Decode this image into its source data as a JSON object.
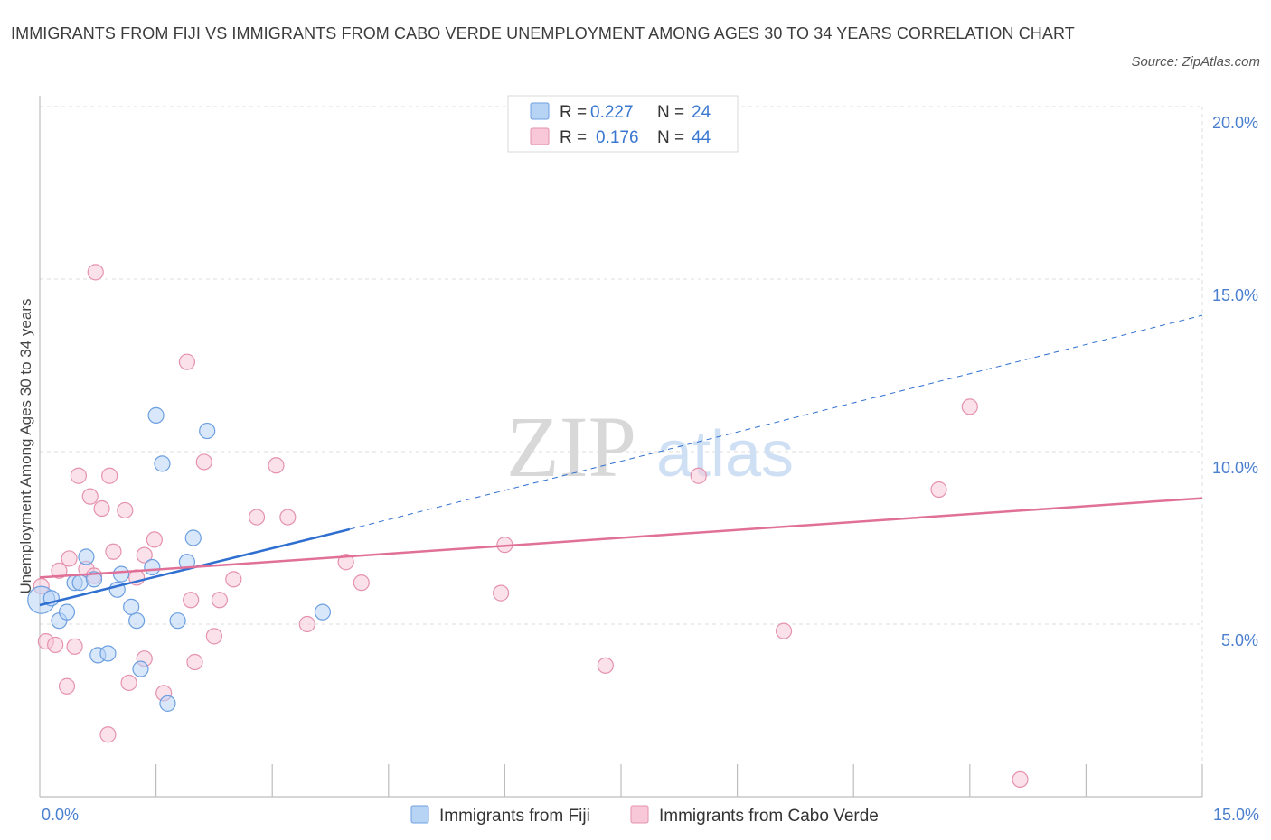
{
  "title": "IMMIGRANTS FROM FIJI VS IMMIGRANTS FROM CABO VERDE UNEMPLOYMENT AMONG AGES 30 TO 34 YEARS CORRELATION CHART",
  "source": "Source: ZipAtlas.com",
  "watermark": {
    "zip": "ZIP",
    "atlas": "atlas"
  },
  "colors": {
    "fiji_fill": "#b8d4f5",
    "fiji_stroke": "#6c9fe0",
    "fiji_line": "#2f6fd0",
    "cabo_fill": "#f8c8d8",
    "cabo_stroke": "#e592ae",
    "cabo_line": "#e07098",
    "tick": "#4a7fcf",
    "grid": "#dcdcdc"
  },
  "legend": {
    "r_label": "R =",
    "n_label": "N =",
    "rows": [
      {
        "series": "fiji",
        "r": "0.227",
        "n": "24"
      },
      {
        "series": "cabo",
        "r": "0.176",
        "n": "44"
      }
    ]
  },
  "chart_data": {
    "type": "scatter",
    "title": "IMMIGRANTS FROM FIJI VS IMMIGRANTS FROM CABO VERDE UNEMPLOYMENT AMONG AGES 30 TO 34 YEARS CORRELATION CHART",
    "xlabel": "",
    "ylabel": "Unemployment Among Ages 30 to 34 years",
    "xlim": [
      0,
      15
    ],
    "ylim": [
      0,
      20
    ],
    "x_tick_labels": [
      {
        "value": 0,
        "label": "0.0%"
      },
      {
        "value": 15,
        "label": "15.0%"
      }
    ],
    "x_minor_ticks": [
      1.5,
      3,
      4.5,
      6,
      7.5,
      9,
      10.5,
      12,
      13.5
    ],
    "y_ticks": [
      {
        "value": 5,
        "label": "5.0%"
      },
      {
        "value": 10,
        "label": "10.0%"
      },
      {
        "value": 15,
        "label": "15.0%"
      },
      {
        "value": 20,
        "label": "20.0%"
      }
    ],
    "series": [
      {
        "name": "Immigrants from Fiji",
        "key": "fiji",
        "points": [
          [
            0.02,
            5.7
          ],
          [
            0.15,
            5.75
          ],
          [
            0.25,
            5.1
          ],
          [
            0.35,
            5.35
          ],
          [
            0.45,
            6.2
          ],
          [
            0.52,
            6.2
          ],
          [
            0.6,
            6.95
          ],
          [
            0.7,
            6.3
          ],
          [
            0.75,
            4.1
          ],
          [
            0.88,
            4.15
          ],
          [
            1.0,
            6.0
          ],
          [
            1.05,
            6.45
          ],
          [
            1.18,
            5.5
          ],
          [
            1.25,
            5.1
          ],
          [
            1.3,
            3.7
          ],
          [
            1.45,
            6.65
          ],
          [
            1.5,
            11.05
          ],
          [
            1.58,
            9.65
          ],
          [
            1.65,
            2.7
          ],
          [
            1.78,
            5.1
          ],
          [
            1.9,
            6.8
          ],
          [
            1.98,
            7.5
          ],
          [
            2.16,
            10.6
          ],
          [
            3.65,
            5.35
          ]
        ],
        "trend": {
          "x0": 0,
          "y0": 5.55,
          "x1": 4.0,
          "y1": 7.75,
          "extend_x": 15,
          "extend_y": 13.95
        }
      },
      {
        "name": "Immigrants from Cabo Verde",
        "key": "cabo",
        "points": [
          [
            0.02,
            6.1
          ],
          [
            0.08,
            4.5
          ],
          [
            0.2,
            4.4
          ],
          [
            0.25,
            6.55
          ],
          [
            0.35,
            3.2
          ],
          [
            0.38,
            6.9
          ],
          [
            0.45,
            4.35
          ],
          [
            0.5,
            9.3
          ],
          [
            0.6,
            6.6
          ],
          [
            0.65,
            8.7
          ],
          [
            0.7,
            6.4
          ],
          [
            0.72,
            15.2
          ],
          [
            0.8,
            8.35
          ],
          [
            0.88,
            1.8
          ],
          [
            0.9,
            9.3
          ],
          [
            0.95,
            7.1
          ],
          [
            1.1,
            8.3
          ],
          [
            1.15,
            3.3
          ],
          [
            1.25,
            6.35
          ],
          [
            1.35,
            4.0
          ],
          [
            1.35,
            7.0
          ],
          [
            1.48,
            7.45
          ],
          [
            1.6,
            3.0
          ],
          [
            1.9,
            12.6
          ],
          [
            1.95,
            5.7
          ],
          [
            2.0,
            3.9
          ],
          [
            2.12,
            9.7
          ],
          [
            2.25,
            4.65
          ],
          [
            2.32,
            5.7
          ],
          [
            2.5,
            6.3
          ],
          [
            2.8,
            8.1
          ],
          [
            3.05,
            9.6
          ],
          [
            3.2,
            8.1
          ],
          [
            3.45,
            5.0
          ],
          [
            3.95,
            6.8
          ],
          [
            4.15,
            6.2
          ],
          [
            6.0,
            7.3
          ],
          [
            5.95,
            5.9
          ],
          [
            7.3,
            3.8
          ],
          [
            8.5,
            9.3
          ],
          [
            9.6,
            4.8
          ],
          [
            11.6,
            8.9
          ],
          [
            12.0,
            11.3
          ],
          [
            12.65,
            0.5
          ]
        ],
        "trend": {
          "x0": 0,
          "y0": 6.35,
          "x1": 15,
          "y1": 8.65
        }
      }
    ]
  },
  "bottom_legend": [
    {
      "series": "fiji",
      "label": "Immigrants from Fiji"
    },
    {
      "series": "cabo",
      "label": "Immigrants from Cabo Verde"
    }
  ]
}
